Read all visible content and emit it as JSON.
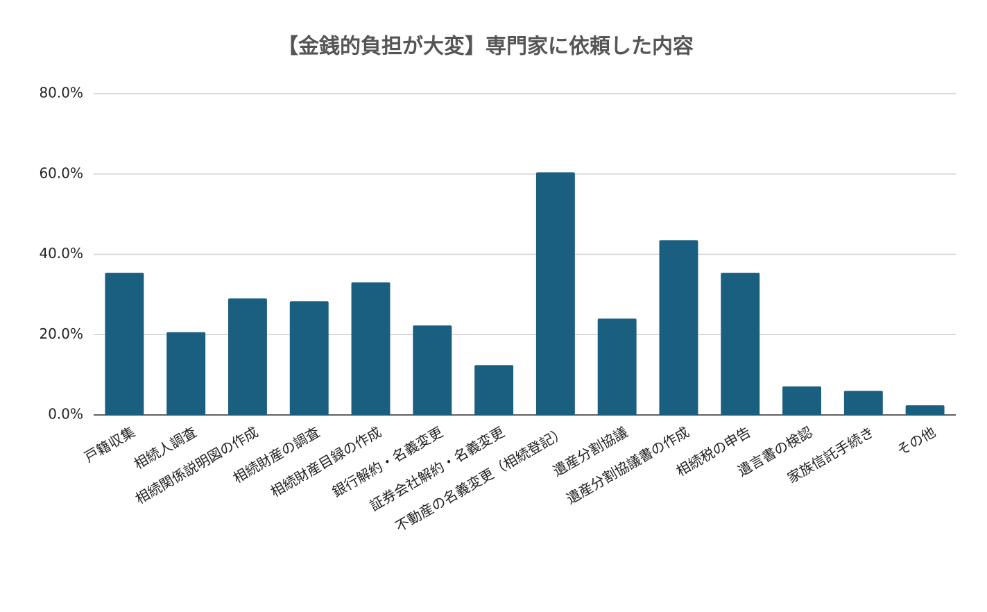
{
  "chart_data": {
    "type": "bar",
    "title": "【金銭的負担が大変】専門家に依頼した内容",
    "categories": [
      "戸籍収集",
      "相続人調査",
      "相続関係説明図の作成",
      "相続財産の調査",
      "相続財産目録の作成",
      "銀行解約・名義変更",
      "証券会社解約・名義変更",
      "不動産の名義変更（相続登記）",
      "遺産分割協議",
      "遺産分割協議書の作成",
      "相続税の申告",
      "遺言書の検認",
      "家族信託手続き",
      "その他"
    ],
    "values": [
      35.4,
      20.6,
      29.0,
      28.3,
      33.0,
      22.3,
      12.4,
      60.4,
      24.0,
      43.5,
      35.4,
      7.1,
      6.0,
      2.4
    ],
    "color": "#1a5f80",
    "ylim": [
      0,
      80
    ],
    "yticks": [
      {
        "value": 0,
        "label": "0.0%"
      },
      {
        "value": 20,
        "label": "20.0%"
      },
      {
        "value": 40,
        "label": "40.0%"
      },
      {
        "value": 60,
        "label": "60.0%"
      },
      {
        "value": 80,
        "label": "80.0%"
      }
    ],
    "grid": true
  }
}
